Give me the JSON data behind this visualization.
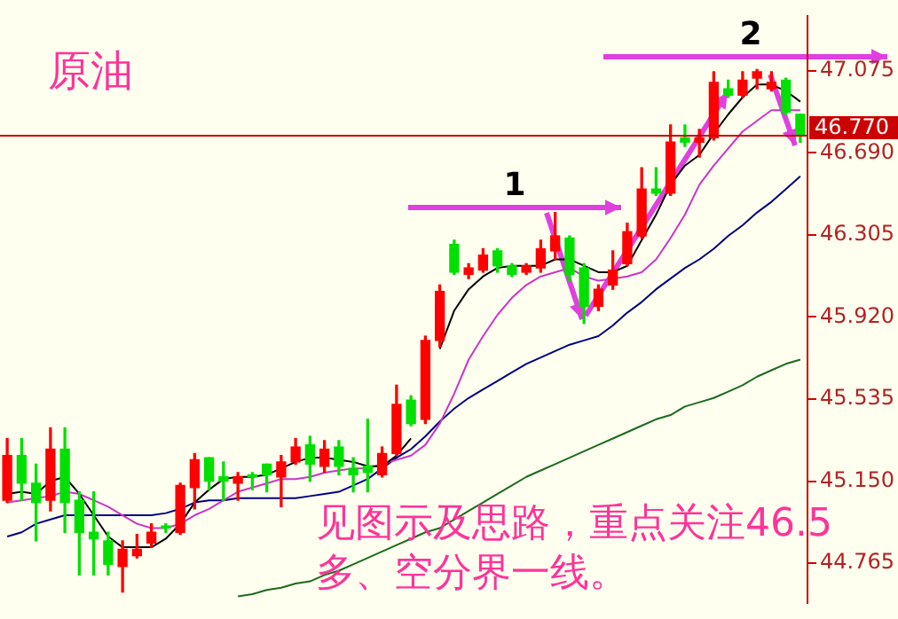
{
  "chart_data": {
    "type": "candlestick",
    "title": "原油",
    "annotations": [
      "1",
      "2",
      "见图示及思路，重点关注46.5多、空分界一线。"
    ],
    "categories": [
      null,
      null,
      null,
      null,
      null,
      null,
      null,
      null,
      null,
      null,
      null,
      null,
      null,
      null,
      null,
      null,
      null,
      null,
      null,
      null,
      null,
      null,
      null,
      null,
      null,
      null,
      null,
      null,
      null,
      null,
      null,
      null,
      null,
      null,
      null,
      null,
      null,
      null,
      null,
      null,
      null,
      null,
      null,
      null,
      null,
      null,
      null,
      null,
      null,
      null,
      null,
      null,
      null,
      null,
      null,
      null
    ],
    "ohlc": [
      [
        45.06,
        45.35,
        45.05,
        45.27
      ],
      [
        45.27,
        45.35,
        45.06,
        45.14
      ],
      [
        45.14,
        45.23,
        44.87,
        45.05
      ],
      [
        45.06,
        45.4,
        45.01,
        45.3
      ],
      [
        45.3,
        45.4,
        44.91,
        45.05
      ],
      [
        45.06,
        45.1,
        44.71,
        44.91
      ],
      [
        44.91,
        45.1,
        44.71,
        44.88
      ],
      [
        44.87,
        44.91,
        44.71,
        44.76
      ],
      [
        44.75,
        44.87,
        44.63,
        44.83
      ],
      [
        44.8,
        44.9,
        44.79,
        44.83
      ],
      [
        44.86,
        44.95,
        44.84,
        44.91
      ],
      [
        44.94,
        44.95,
        44.91,
        44.93
      ],
      [
        44.91,
        45.14,
        44.9,
        45.13
      ],
      [
        45.12,
        45.28,
        45.02,
        45.25
      ],
      [
        45.26,
        45.26,
        45.11,
        45.15
      ],
      [
        45.17,
        45.24,
        45.06,
        45.15
      ],
      [
        45.14,
        45.19,
        45.06,
        45.17
      ],
      [
        45.18,
        45.19,
        45.11,
        45.17
      ],
      [
        45.23,
        45.23,
        45.1,
        45.18
      ],
      [
        45.17,
        45.27,
        45.03,
        45.24
      ],
      [
        45.24,
        45.35,
        45.23,
        45.31
      ],
      [
        45.32,
        45.36,
        45.15,
        45.23
      ],
      [
        45.22,
        45.34,
        45.19,
        45.3
      ],
      [
        45.31,
        45.34,
        45.18,
        45.22
      ],
      [
        45.21,
        45.26,
        45.1,
        45.18
      ],
      [
        45.22,
        45.44,
        45.1,
        45.19
      ],
      [
        45.18,
        45.31,
        45.17,
        45.28
      ],
      [
        45.28,
        45.6,
        45.27,
        45.51
      ],
      [
        45.53,
        45.55,
        45.41,
        45.42
      ],
      [
        45.44,
        45.83,
        45.42,
        45.81
      ],
      [
        45.81,
        46.07,
        45.78,
        46.04
      ],
      [
        46.26,
        46.28,
        46.12,
        46.13
      ],
      [
        46.12,
        46.17,
        46.1,
        46.15
      ],
      [
        46.14,
        46.24,
        46.13,
        46.21
      ],
      [
        46.23,
        46.24,
        46.13,
        46.16
      ],
      [
        46.16,
        46.17,
        46.11,
        46.12
      ],
      [
        46.13,
        46.17,
        46.12,
        46.16
      ],
      [
        46.15,
        46.28,
        46.13,
        46.24
      ],
      [
        46.23,
        46.41,
        46.19,
        46.3
      ],
      [
        46.29,
        46.3,
        46.09,
        46.12
      ],
      [
        46.15,
        46.17,
        45.89,
        45.97
      ],
      [
        45.97,
        46.07,
        45.95,
        46.05
      ],
      [
        46.07,
        46.23,
        46.05,
        46.14
      ],
      [
        46.17,
        46.36,
        46.16,
        46.32
      ],
      [
        46.3,
        46.62,
        46.29,
        46.52
      ],
      [
        46.52,
        46.62,
        46.49,
        46.5
      ],
      [
        46.5,
        46.82,
        46.49,
        46.74
      ],
      [
        46.76,
        46.82,
        46.72,
        46.74
      ],
      [
        46.74,
        46.8,
        46.67,
        46.76
      ],
      [
        46.76,
        47.07,
        46.75,
        47.02
      ],
      [
        46.99,
        47.03,
        46.95,
        46.96
      ],
      [
        46.96,
        47.07,
        46.95,
        47.03
      ],
      [
        47.04,
        47.08,
        46.99,
        47.07
      ],
      [
        46.99,
        47.07,
        46.98,
        47.02
      ],
      [
        47.03,
        47.04,
        46.87,
        46.88
      ],
      [
        46.87,
        46.87,
        46.74,
        46.77
      ]
    ],
    "series": [
      {
        "type": "line",
        "color": "#000000",
        "values": [
          45.09,
          45.1,
          45.09,
          45.15,
          45.17,
          45.09,
          44.99,
          44.89,
          44.84,
          44.84,
          44.84,
          44.88,
          44.95,
          45.05,
          45.11,
          45.16,
          45.17,
          45.17,
          45.18,
          45.21,
          45.24,
          45.26,
          45.26,
          45.25,
          45.24,
          45.22,
          45.22,
          45.27,
          45.35,
          null,
          45.77,
          45.95,
          46.05,
          46.11,
          46.15,
          46.16,
          46.16,
          46.16,
          46.19,
          46.19,
          46.16,
          46.13,
          46.13,
          46.16,
          46.28,
          46.4,
          46.54,
          46.63,
          46.68,
          46.78,
          46.87,
          46.95,
          47.01,
          47.01,
          46.98,
          46.93
        ]
      },
      {
        "type": "line",
        "color": "#cc33cc",
        "values": [
          45.05,
          45.06,
          45.07,
          45.08,
          45.1,
          45.09,
          45.06,
          45.03,
          44.99,
          44.95,
          44.93,
          44.93,
          44.95,
          44.99,
          45.02,
          45.06,
          45.1,
          45.12,
          45.14,
          45.16,
          45.16,
          45.17,
          45.19,
          45.2,
          45.21,
          45.21,
          45.23,
          45.25,
          45.27,
          45.32,
          45.42,
          45.56,
          45.72,
          45.83,
          45.93,
          46.01,
          46.07,
          46.11,
          46.13,
          46.15,
          46.11,
          46.09,
          46.1,
          46.11,
          46.13,
          46.19,
          46.29,
          46.4,
          46.54,
          46.63,
          46.71,
          46.79,
          46.84,
          46.89,
          46.89,
          46.89
        ]
      },
      {
        "type": "line",
        "color": "#000080",
        "values": [
          44.89,
          44.91,
          44.95,
          44.97,
          44.99,
          44.99,
          44.99,
          44.99,
          44.99,
          44.99,
          44.99,
          45.0,
          45.02,
          45.05,
          45.06,
          45.06,
          45.07,
          45.07,
          45.07,
          45.07,
          45.07,
          45.08,
          45.09,
          45.1,
          45.13,
          45.16,
          45.21,
          45.26,
          45.3,
          45.36,
          45.43,
          45.49,
          45.54,
          45.58,
          45.62,
          45.66,
          45.7,
          45.73,
          45.76,
          45.79,
          45.81,
          45.83,
          45.88,
          45.94,
          45.99,
          46.05,
          46.1,
          46.15,
          46.19,
          46.24,
          46.3,
          46.35,
          46.41,
          46.46,
          46.52,
          46.58
        ]
      },
      {
        "type": "line",
        "color": "#1a6b1a",
        "values": [
          null,
          null,
          null,
          null,
          null,
          null,
          null,
          null,
          null,
          null,
          null,
          null,
          null,
          null,
          null,
          null,
          44.61,
          44.62,
          44.64,
          44.65,
          44.67,
          44.68,
          44.71,
          44.73,
          44.76,
          44.79,
          44.82,
          44.85,
          44.88,
          44.91,
          44.93,
          44.97,
          45.01,
          45.05,
          45.09,
          45.13,
          45.17,
          45.2,
          45.23,
          45.26,
          45.29,
          45.32,
          45.35,
          45.38,
          45.41,
          45.44,
          45.46,
          45.5,
          45.52,
          45.54,
          45.57,
          45.6,
          45.64,
          45.67,
          45.7,
          45.72
        ]
      }
    ],
    "ylim": [
      44.58,
      47.33
    ],
    "yticks": [
      {
        "value": 44.765,
        "label": "44.765"
      },
      {
        "value": 45.15,
        "label": "45.150"
      },
      {
        "value": 45.535,
        "label": "45.535"
      },
      {
        "value": 45.92,
        "label": "45.920"
      },
      {
        "value": 46.305,
        "label": "46.305"
      },
      {
        "value": 46.69,
        "label": "46.690"
      },
      {
        "value": 47.075,
        "label": "47.075"
      }
    ],
    "ref_lines": [
      {
        "axis": "y",
        "value": 46.77,
        "label": "46.770",
        "color": "#cc0000"
      }
    ],
    "tick_labels": "y",
    "legend": false,
    "marker": "none"
  }
}
